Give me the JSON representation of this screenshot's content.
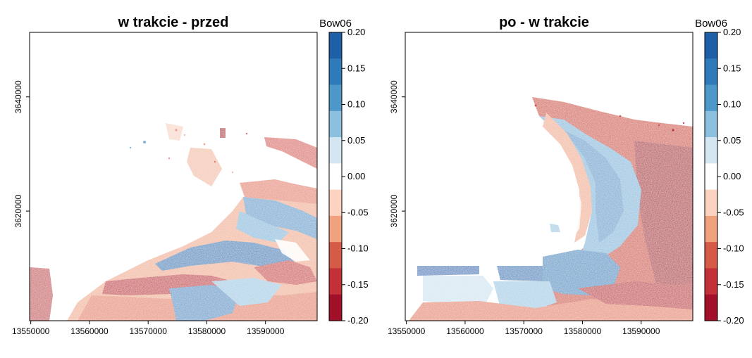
{
  "figure": {
    "legend_title": "Bow06"
  },
  "chart_data": [
    {
      "type": "heatmap",
      "title": "w trakcie - przed",
      "xlabel": "",
      "ylabel": "",
      "x_ticks": [
        13550000,
        13560000,
        13570000,
        13580000,
        13590000
      ],
      "y_ticks": [
        3620000,
        3640000
      ],
      "xlim": [
        13549800,
        13598800
      ],
      "ylim": [
        3600800,
        3651300
      ],
      "legend": {
        "title": "Bow06",
        "breaks": [
          0.2,
          0.15,
          0.1,
          0.05,
          0.0,
          -0.05,
          -0.1,
          -0.15,
          -0.2
        ],
        "break_labels": [
          "0.20",
          "0.15",
          "0.10",
          "0.05",
          "0.00",
          "-0.05",
          "-0.10",
          "-0.15",
          "-0.20"
        ],
        "colors": [
          "#1e5fa8",
          "#2f7ab8",
          "#4e97c9",
          "#8cc0de",
          "#d3e6f2",
          "#ffffff",
          "#fbd3c0",
          "#f0a17d",
          "#d55a48",
          "#c4303a",
          "#a20f28"
        ],
        "position": "right"
      }
    },
    {
      "type": "heatmap",
      "title": "po - w trakcie",
      "xlabel": "",
      "ylabel": "",
      "x_ticks": [
        13550000,
        13560000,
        13570000,
        13580000,
        13590000
      ],
      "y_ticks": [
        3620000,
        3640000
      ],
      "xlim": [
        13549800,
        13598800
      ],
      "ylim": [
        3600800,
        3651300
      ],
      "legend": {
        "title": "Bow06",
        "breaks": [
          0.2,
          0.15,
          0.1,
          0.05,
          0.0,
          -0.05,
          -0.1,
          -0.15,
          -0.2
        ],
        "break_labels": [
          "0.20",
          "0.15",
          "0.10",
          "0.05",
          "0.00",
          "-0.05",
          "-0.10",
          "-0.15",
          "-0.20"
        ],
        "colors": [
          "#1e5fa8",
          "#2f7ab8",
          "#4e97c9",
          "#8cc0de",
          "#d3e6f2",
          "#ffffff",
          "#fbd3c0",
          "#f0a17d",
          "#d55a48",
          "#c4303a",
          "#a20f28"
        ],
        "position": "right"
      }
    }
  ]
}
